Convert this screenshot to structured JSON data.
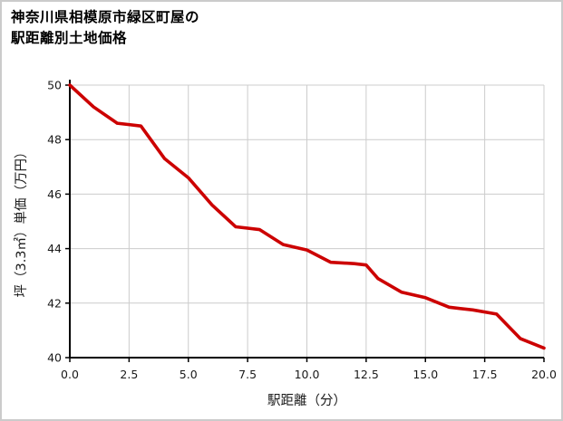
{
  "title_line1": "神奈川県相模原市緑区町屋の",
  "title_line2": "駅距離別土地価格",
  "chart_data": {
    "type": "line",
    "title": "神奈川県相模原市緑区町屋の駅距離別土地価格",
    "xlabel": "駅距離（分）",
    "ylabel": "坪（3.3㎡）単価（万円）",
    "xlim": [
      0,
      20
    ],
    "ylim": [
      40,
      50
    ],
    "xticks": [
      0,
      2.5,
      5,
      7.5,
      10,
      12.5,
      15,
      17.5,
      20
    ],
    "xtick_labels": [
      "0.0",
      "2.5",
      "5.0",
      "7.5",
      "10.0",
      "12.5",
      "15.0",
      "17.5",
      "20.0"
    ],
    "yticks": [
      40,
      42,
      44,
      46,
      48,
      50
    ],
    "ytick_labels": [
      "40",
      "42",
      "44",
      "46",
      "48",
      "50"
    ],
    "grid": true,
    "grid_color": "#cccccc",
    "axis_color": "#000000",
    "line_color": "#cc0000",
    "legend": "none",
    "x": [
      0,
      1,
      2,
      2.5,
      3,
      4,
      5,
      6,
      7,
      8,
      9,
      10,
      11,
      12,
      12.5,
      13,
      14,
      15,
      16,
      17,
      18,
      19,
      20
    ],
    "y": [
      50.0,
      49.2,
      48.6,
      48.55,
      48.5,
      47.3,
      46.6,
      45.6,
      44.8,
      44.7,
      44.15,
      43.95,
      43.5,
      43.45,
      43.4,
      42.9,
      42.4,
      42.2,
      41.85,
      41.75,
      41.6,
      40.7,
      40.35
    ]
  }
}
